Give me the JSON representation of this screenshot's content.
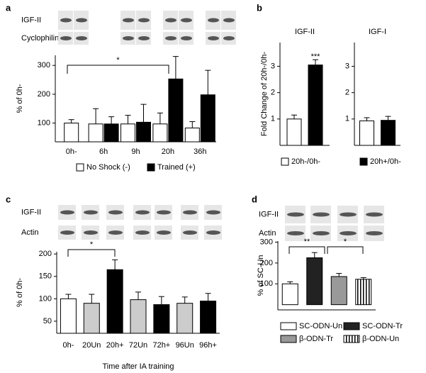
{
  "chart_data": [
    {
      "type": "bar",
      "panel": "a",
      "blot_labels": [
        "IGF-II",
        "Cyclophilin"
      ],
      "y_label": "% of 0h-",
      "categories": [
        "0h-",
        "6h",
        "9h",
        "20h",
        "36h"
      ],
      "series": [
        {
          "name": "No Shock (-)",
          "color": "#ffffff",
          "values": [
            100,
            97,
            97,
            97,
            83
          ],
          "errors": [
            12,
            53,
            30,
            38,
            22
          ]
        },
        {
          "name": "Trained (+)",
          "color": "#000000",
          "values": [
            null,
            97,
            103,
            253,
            198
          ],
          "errors": [
            null,
            25,
            62,
            78,
            85
          ]
        }
      ],
      "ylim": [
        35,
        335
      ],
      "yticks": [
        100,
        200,
        300
      ],
      "annotations": [
        "*"
      ]
    },
    {
      "type": "bar",
      "panel": "b",
      "y_label": "Fold Change of 20h-/0h-",
      "split_axes": true,
      "categories": [
        "IGF-II",
        "IGF-I"
      ],
      "series": [
        {
          "name": "20h-/0h-",
          "color": "#ffffff",
          "values": [
            1.0,
            0.93
          ],
          "errors": [
            0.15,
            0.12
          ]
        },
        {
          "name": "20h+/0h-",
          "color": "#000000",
          "values": [
            3.05,
            0.95
          ],
          "errors": [
            0.2,
            0.15
          ]
        }
      ],
      "ylim": [
        0,
        3.9
      ],
      "yticks": [
        1,
        2,
        3
      ],
      "annotations": [
        "***"
      ]
    },
    {
      "type": "bar",
      "panel": "c",
      "blot_labels": [
        "IGF-II",
        "Actin"
      ],
      "y_label": "% of 0h-",
      "x_label": "Time after IA training",
      "categories": [
        "0h-",
        "20Un",
        "20h+",
        "72Un",
        "72h+",
        "96Un",
        "96h+"
      ],
      "values": [
        100,
        90,
        165,
        98,
        87,
        90,
        95
      ],
      "errors": [
        10,
        20,
        22,
        17,
        18,
        14,
        17
      ],
      "colors": [
        "#ffffff",
        "#cccccc",
        "#000000",
        "#cccccc",
        "#000000",
        "#cccccc",
        "#000000"
      ],
      "ylim": [
        23,
        205
      ],
      "yticks": [
        50,
        100,
        150,
        200
      ],
      "annotations": [
        "*"
      ]
    },
    {
      "type": "bar",
      "panel": "d",
      "blot_labels": [
        "IGF-II",
        "Actin"
      ],
      "y_label": "% of SC-Un",
      "legend": "categories",
      "categories": [
        "SC-ODN-Un",
        "SC-ODN-Tr",
        "β-ODN-Tr",
        "β-ODN-Un"
      ],
      "values": [
        100,
        225,
        135,
        122
      ],
      "errors": [
        10,
        25,
        15,
        8
      ],
      "colors": [
        "#ffffff",
        "#222222",
        "#999999",
        "#ffffff"
      ],
      "patterns": [
        null,
        null,
        null,
        "vertical-stripes"
      ],
      "ylim": [
        -25,
        305
      ],
      "yticks": [
        100,
        200,
        300
      ],
      "annotations": [
        "**",
        "*"
      ]
    }
  ]
}
